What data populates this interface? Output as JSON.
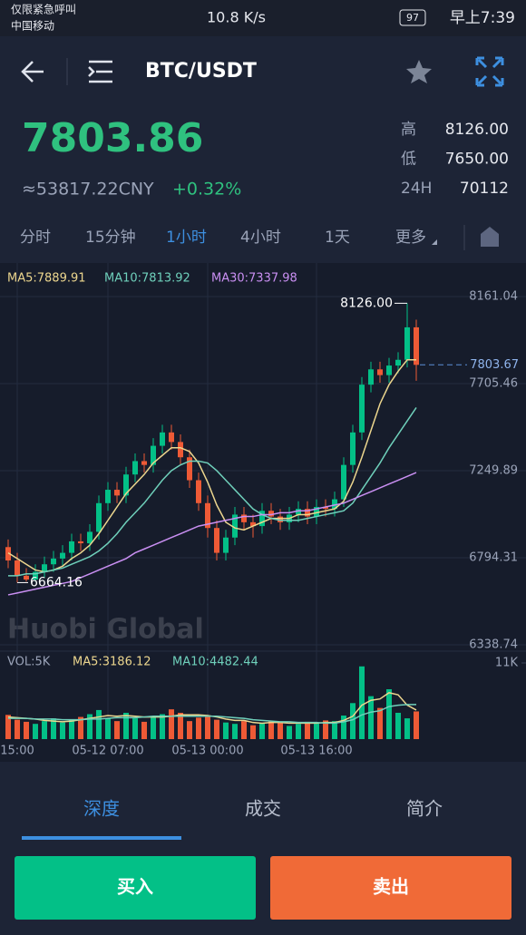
{
  "status_bar": {
    "left_top": "仅限紧急呼叫",
    "left_bottom": "中国移动",
    "speed": "10.8 K/s",
    "battery": "97",
    "time": "早上7:39"
  },
  "header": {
    "pair": "BTC/USDT"
  },
  "ticker": {
    "price": "7803.86",
    "cny": "≈53817.22CNY",
    "change": "+0.32%",
    "stats": [
      {
        "label": "高",
        "value": "8126.00"
      },
      {
        "label": "低",
        "value": "7650.00"
      },
      {
        "label": "24H",
        "value": "70112"
      }
    ]
  },
  "intervals": {
    "items": [
      "分时",
      "15分钟",
      "1小时",
      "4小时",
      "1天",
      "更多"
    ],
    "active": 2
  },
  "chart_data": {
    "type": "candlestick",
    "watermark": "Huobi Global",
    "categories": [
      null,
      "15:00",
      null,
      null,
      null,
      null,
      null,
      null,
      null,
      null,
      null,
      "05-12 07:00",
      null,
      null,
      null,
      null,
      null,
      null,
      null,
      null,
      null,
      null,
      "05-13 00:00",
      null,
      null,
      null,
      null,
      null,
      null,
      null,
      null,
      null,
      null,
      null,
      "05-13 16:00",
      null,
      null,
      null,
      null,
      null,
      null,
      null,
      null,
      null,
      null,
      null
    ],
    "open": [
      6850,
      6780,
      6700,
      6680,
      6720,
      6760,
      6790,
      6820,
      6880,
      6870,
      6930,
      7080,
      7150,
      7120,
      7230,
      7300,
      7280,
      7380,
      7450,
      7400,
      7320,
      7200,
      7080,
      6950,
      6820,
      6900,
      7020,
      6980,
      6960,
      7040,
      7010,
      6980,
      7020,
      7050,
      7010,
      7060,
      7050,
      7100,
      7280,
      7450,
      7700,
      7780,
      7750,
      7800,
      7830,
      8000
    ],
    "high": [
      6890,
      6820,
      6740,
      6760,
      6800,
      6830,
      6860,
      6920,
      6920,
      6970,
      7120,
      7190,
      7190,
      7270,
      7340,
      7340,
      7420,
      7490,
      7490,
      7440,
      7360,
      7240,
      7120,
      6990,
      6940,
      7060,
      7060,
      7020,
      7080,
      7080,
      7050,
      7060,
      7090,
      7090,
      7100,
      7100,
      7140,
      7320,
      7490,
      7740,
      7820,
      7820,
      7840,
      7870,
      8126,
      8040
    ],
    "low": [
      6740,
      6664.16,
      6670,
      6670,
      6690,
      6720,
      6750,
      6780,
      6830,
      6830,
      6890,
      7040,
      7080,
      7080,
      7190,
      7240,
      7240,
      7340,
      7360,
      7280,
      7160,
      7040,
      6900,
      6780,
      6780,
      6860,
      6940,
      6900,
      6920,
      6970,
      6940,
      6940,
      6980,
      6970,
      6970,
      7010,
      7010,
      7060,
      7240,
      7410,
      7660,
      7710,
      7710,
      7760,
      7790,
      7720
    ],
    "close": [
      6780,
      6700,
      6680,
      6720,
      6760,
      6790,
      6820,
      6880,
      6870,
      6930,
      7080,
      7150,
      7120,
      7230,
      7300,
      7280,
      7380,
      7450,
      7400,
      7320,
      7200,
      7080,
      6950,
      6820,
      6900,
      7020,
      6980,
      6960,
      7040,
      7010,
      6980,
      7020,
      7050,
      7010,
      7060,
      7050,
      7100,
      7280,
      7450,
      7700,
      7780,
      7750,
      7800,
      7830,
      8000,
      7803.67
    ],
    "up_color": "#03c087",
    "down_color": "#ee5a36",
    "ylim": [
      6338.74,
      8161.04
    ],
    "yticks": [
      6338.74,
      6794.31,
      7249.89,
      7705.46,
      8161.04
    ],
    "grid": true,
    "last_price": 7803.67,
    "high_marker": {
      "value": 8126,
      "label": "8126.00"
    },
    "low_marker": 6664.16,
    "series": [
      {
        "name": "MA5:7889.91",
        "color": "#ecd68e",
        "values": [
          6820,
          6790,
          6760,
          6730,
          6720,
          6730,
          6750,
          6790,
          6820,
          6860,
          6920,
          6990,
          7060,
          7130,
          7180,
          7230,
          7290,
          7330,
          7370,
          7370,
          7350,
          7290,
          7190,
          7070,
          6980,
          6950,
          6940,
          6960,
          6980,
          7000,
          7000,
          7000,
          7020,
          7020,
          7030,
          7040,
          7050,
          7090,
          7190,
          7320,
          7460,
          7600,
          7700,
          7770,
          7830,
          7830
        ]
      },
      {
        "name": "MA10:7813.92",
        "color": "#6fd0bb",
        "values": [
          6700,
          6700,
          6710,
          6710,
          6720,
          6730,
          6740,
          6760,
          6780,
          6800,
          6830,
          6870,
          6920,
          6980,
          7030,
          7080,
          7140,
          7200,
          7250,
          7280,
          7300,
          7300,
          7290,
          7250,
          7200,
          7150,
          7100,
          7050,
          7020,
          7000,
          6990,
          6990,
          6990,
          7000,
          7010,
          7020,
          7030,
          7040,
          7080,
          7150,
          7220,
          7290,
          7370,
          7440,
          7510,
          7580
        ]
      },
      {
        "name": "MA30:7337.98",
        "color": "#c98ff2",
        "values": [
          6600,
          6610,
          6620,
          6630,
          6640,
          6650,
          6660,
          6670,
          6690,
          6710,
          6730,
          6750,
          6770,
          6790,
          6820,
          6840,
          6860,
          6880,
          6900,
          6920,
          6940,
          6960,
          6970,
          6980,
          6990,
          7000,
          7010,
          7010,
          7020,
          7020,
          7030,
          7030,
          7040,
          7040,
          7050,
          7060,
          7070,
          7080,
          7100,
          7120,
          7140,
          7160,
          7180,
          7200,
          7220,
          7240
        ]
      }
    ],
    "volume": {
      "title": "VOL:5K",
      "y2lim": [
        0,
        11000
      ],
      "y2ticks": [
        {
          "value": 11000,
          "label": "11K"
        }
      ],
      "values": [
        3500,
        2800,
        2500,
        2200,
        2600,
        3000,
        2400,
        2800,
        3200,
        3600,
        4200,
        3000,
        2600,
        3800,
        3000,
        2500,
        3300,
        3600,
        4300,
        3800,
        2600,
        3100,
        3400,
        2800,
        2400,
        2200,
        2600,
        2000,
        2300,
        2600,
        2400,
        1900,
        2200,
        2500,
        2300,
        2700,
        2600,
        3400,
        5200,
        10500,
        6200,
        4500,
        7200,
        3800,
        3000,
        4000
      ],
      "series": [
        {
          "name": "MA5:3186.12",
          "color": "#ecd68e",
          "axis": "y2",
          "values": [
            3200,
            3100,
            3000,
            2900,
            2700,
            2600,
            2500,
            2600,
            2800,
            3000,
            3200,
            3400,
            3300,
            3400,
            3300,
            3200,
            3200,
            3200,
            3300,
            3500,
            3500,
            3500,
            3400,
            3200,
            2900,
            2700,
            2700,
            2400,
            2300,
            2400,
            2400,
            2300,
            2300,
            2300,
            2300,
            2400,
            2400,
            2700,
            3300,
            4900,
            5600,
            5800,
            6700,
            6400,
            4900,
            4200
          ]
        },
        {
          "name": "MA10:4482.44",
          "color": "#6fd0bb",
          "axis": "y2",
          "values": [
            3000,
            3000,
            3000,
            2900,
            2900,
            2900,
            2800,
            2800,
            2800,
            2900,
            2900,
            3000,
            3100,
            3100,
            3100,
            3200,
            3300,
            3300,
            3300,
            3300,
            3300,
            3300,
            3300,
            3300,
            3200,
            3100,
            3000,
            2800,
            2700,
            2600,
            2500,
            2500,
            2400,
            2400,
            2400,
            2300,
            2300,
            2500,
            2800,
            3500,
            3900,
            4100,
            4700,
            4900,
            5000,
            5000
          ]
        }
      ]
    }
  },
  "bottom_tabs": {
    "items": [
      "深度",
      "成交",
      "简介"
    ],
    "active": 0
  },
  "actions": {
    "buy": "买入",
    "sell": "卖出"
  }
}
